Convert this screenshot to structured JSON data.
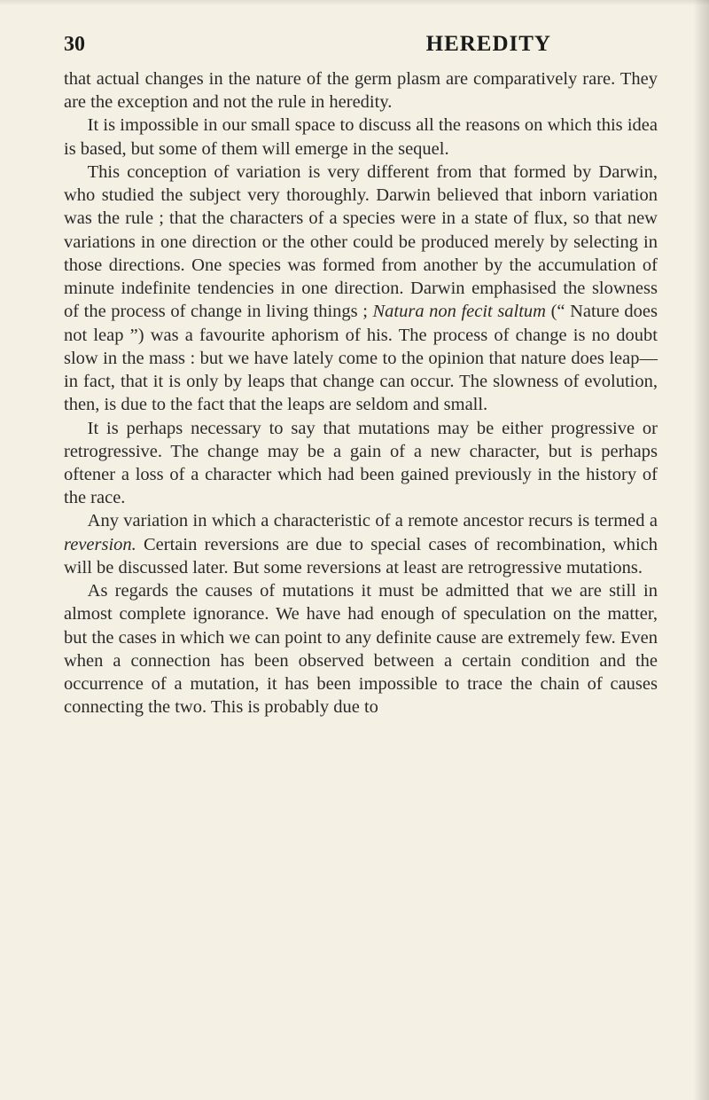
{
  "page": {
    "number": "30",
    "running_title": "HEREDITY",
    "background_color": "#f5f0e4",
    "text_color": "#2a2a2a",
    "header_color": "#1a1a1a",
    "body_fontsize": 20.5,
    "header_fontsize": 25,
    "pagenum_fontsize": 24,
    "line_height": 1.28,
    "paragraphs": [
      {
        "segments": [
          {
            "text": "that actual changes in the nature of the germ plasm are comparatively rare. They are the exception and not the rule in heredity.",
            "italic": false
          }
        ]
      },
      {
        "segments": [
          {
            "text": "It is impossible in our small space to discuss all the reasons on which this idea is based, but some of them will emerge in the sequel.",
            "italic": false
          }
        ]
      },
      {
        "segments": [
          {
            "text": "This conception of variation is very different from that formed by Darwin, who studied the subject very thoroughly. Darwin believed that inborn variation was the rule ; that the characters of a species were in a state of flux, so that new variations in one direction or the other could be produced merely by selecting in those directions. One species was formed from another by the accumulation of minute indefinite tendencies in one direction. Darwin emphasised the slowness of the pro­cess of change in living things ; ",
            "italic": false
          },
          {
            "text": "Natura non fecit saltum",
            "italic": true
          },
          {
            "text": " (“ Nature does not leap ”) was a favourite aphorism of his. The process of change is no doubt slow in the mass : but we have lately come to the opinion that nature does leap—in fact, that it is only by leaps that change can occur. The slowness of evolution, then, is due to the fact that the leaps are seldom and small.",
            "italic": false
          }
        ]
      },
      {
        "segments": [
          {
            "text": "It is perhaps necessary to say that mutations may be either progressive or retrogressive. The change may be a gain of a new character, but is perhaps oftener a loss of a character which had been gained previously in the history of the race.",
            "italic": false
          }
        ]
      },
      {
        "segments": [
          {
            "text": "Any variation in which a characteristic of a remote ancestor recurs is termed a ",
            "italic": false
          },
          {
            "text": "reversion.",
            "italic": true
          },
          {
            "text": " Certain rever­sions are due to special cases of recombination, which will be discussed later. But some reversions at least are retrogressive mutations.",
            "italic": false
          }
        ]
      },
      {
        "segments": [
          {
            "text": "As regards the causes of mutations it must be ad­mitted that we are still in almost complete ignorance. We have had enough of speculation on the matter, but the cases in which we can point to any definite cause are extremely few. Even when a connection has been observed between a certain condition and the occurrence of a mutation, it has been impossible to trace the chain of causes connecting the two. This is probably due to",
            "italic": false
          }
        ]
      }
    ]
  }
}
